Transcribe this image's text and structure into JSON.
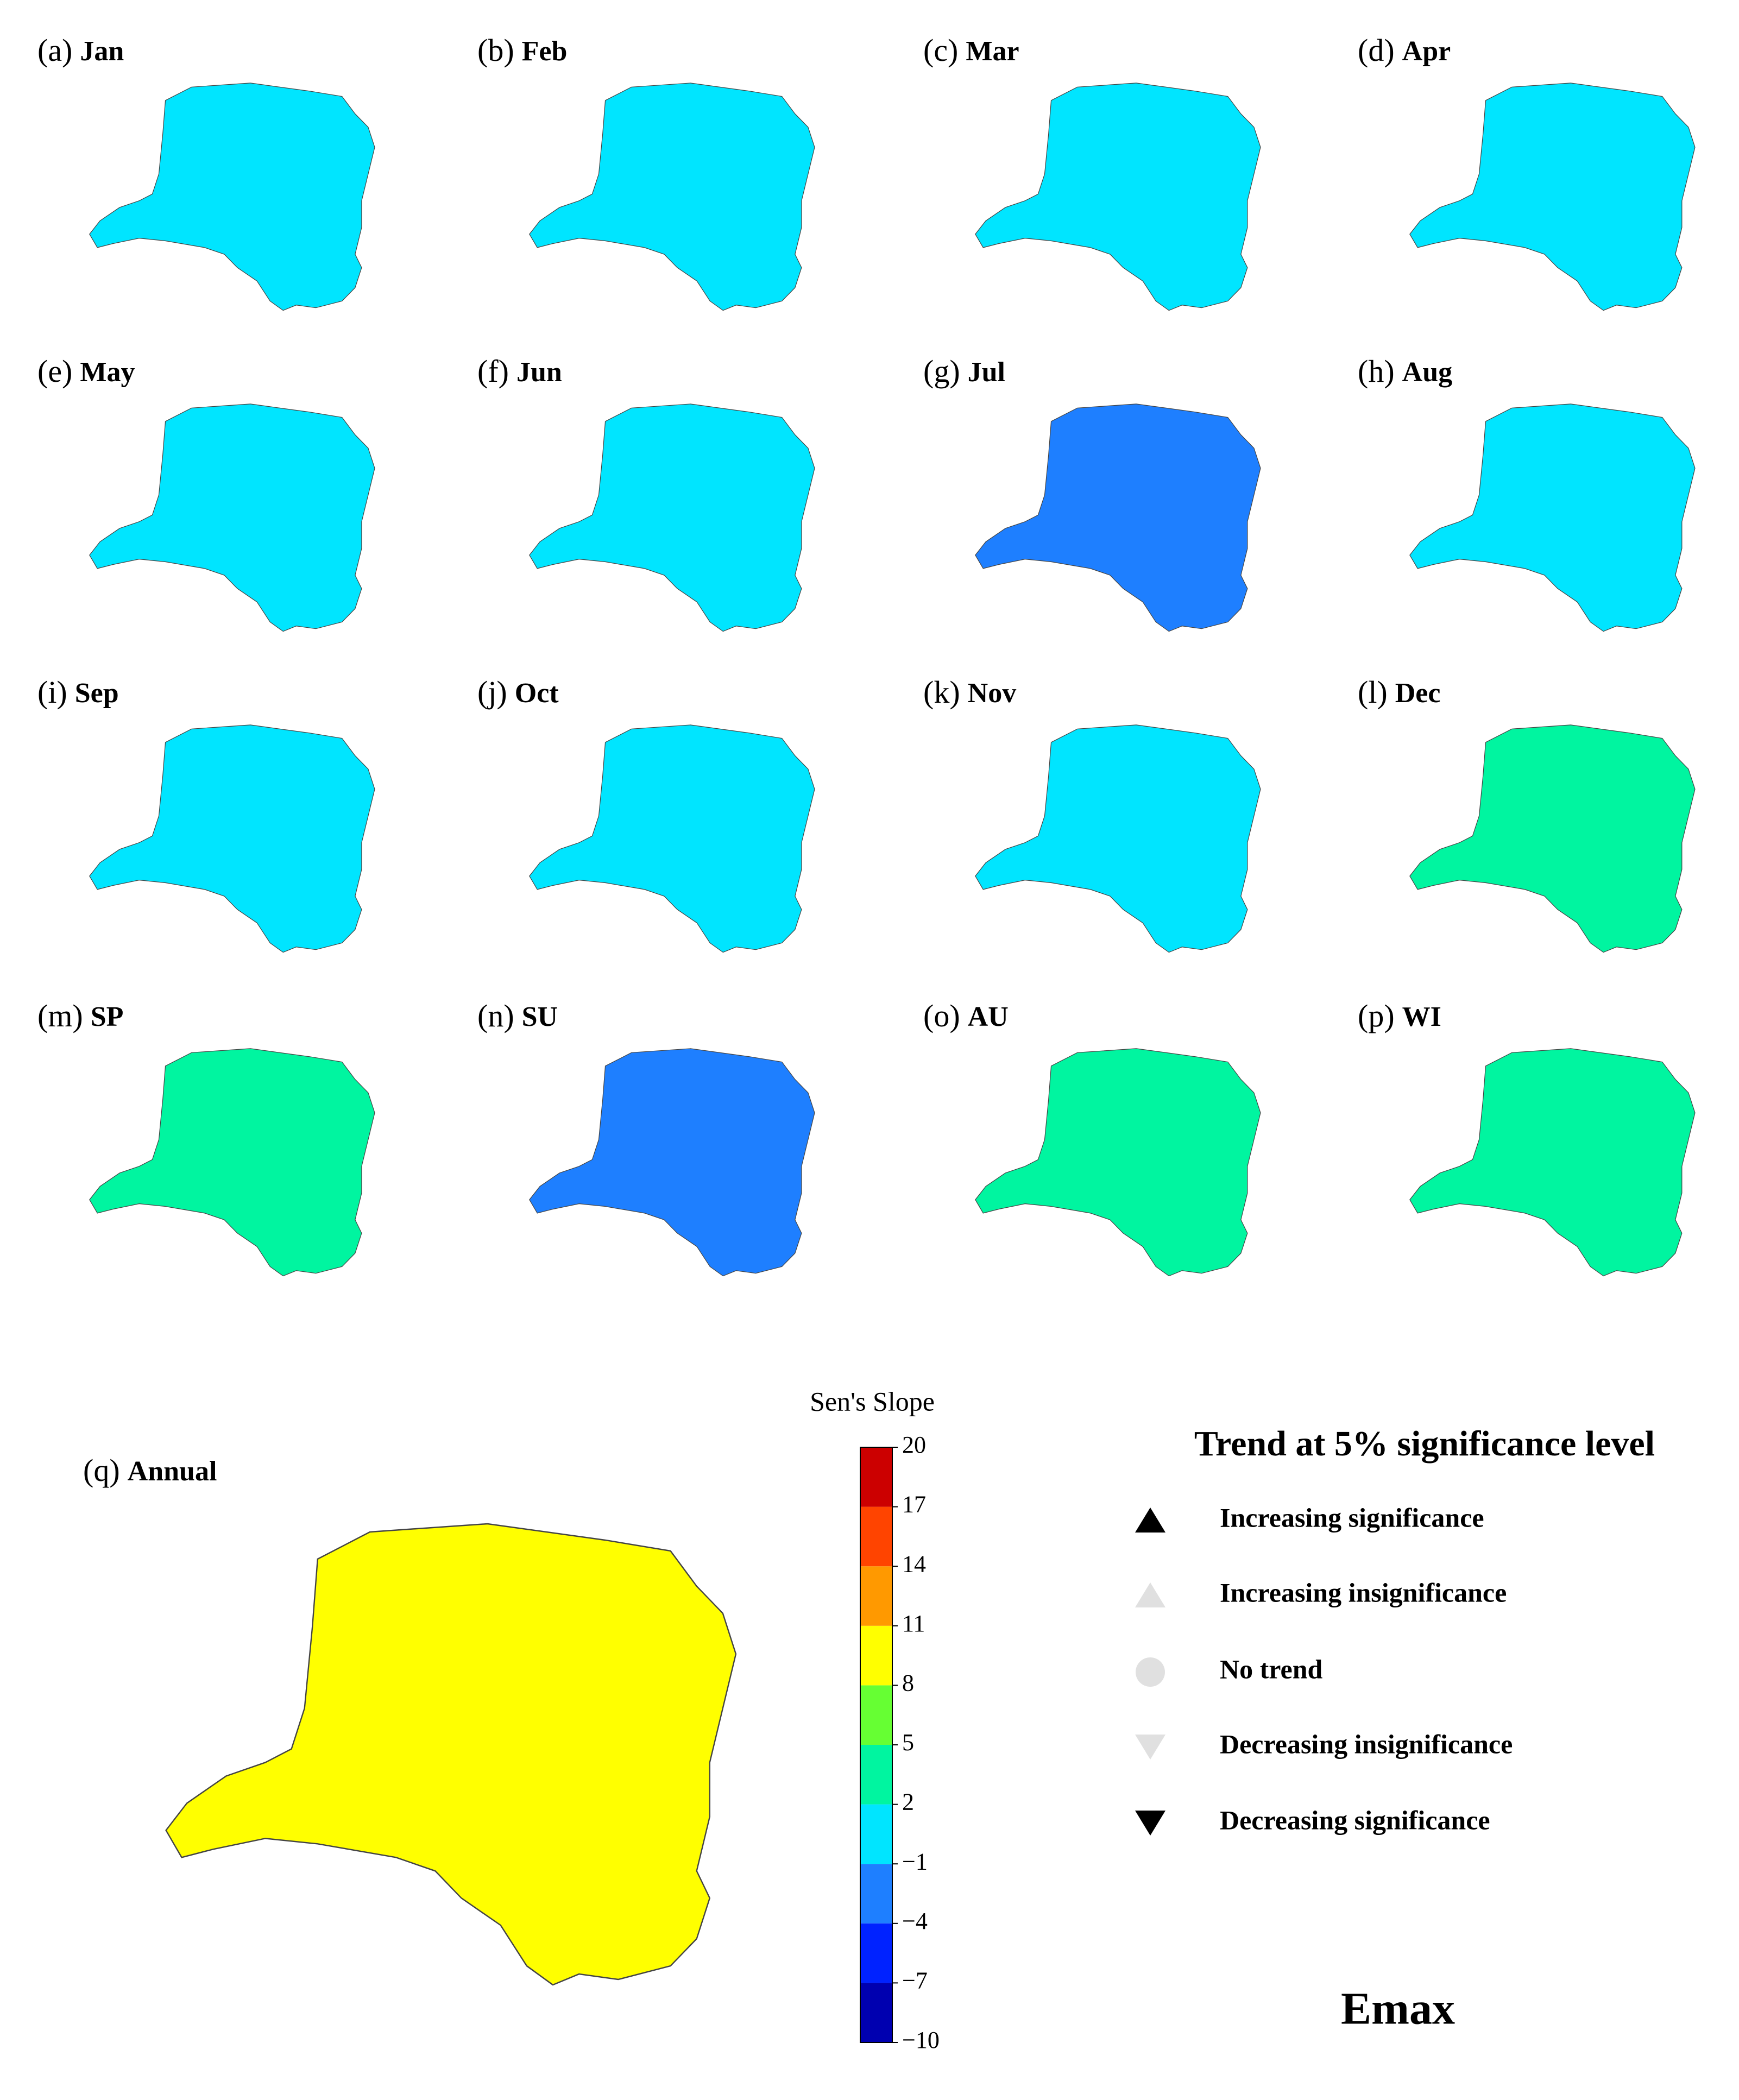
{
  "panels": [
    {
      "label": "(a)",
      "name": "Jan",
      "color": "#00e5ff"
    },
    {
      "label": "(b)",
      "name": "Feb",
      "color": "#00e5ff"
    },
    {
      "label": "(c)",
      "name": "Mar",
      "color": "#00e5ff"
    },
    {
      "label": "(d)",
      "name": "Apr",
      "color": "#00e5ff"
    },
    {
      "label": "(e)",
      "name": "May",
      "color": "#00e5ff"
    },
    {
      "label": "(f)",
      "name": "Jun",
      "color": "#00e5ff"
    },
    {
      "label": "(g)",
      "name": "Jul",
      "color": "#1e7fff"
    },
    {
      "label": "(h)",
      "name": "Aug",
      "color": "#00e5ff"
    },
    {
      "label": "(i)",
      "name": "Sep",
      "color": "#00e5ff"
    },
    {
      "label": "(j)",
      "name": "Oct",
      "color": "#00e5ff"
    },
    {
      "label": "(k)",
      "name": "Nov",
      "color": "#00e5ff"
    },
    {
      "label": "(l)",
      "name": "Dec",
      "color": "#00f5a0"
    },
    {
      "label": "(m)",
      "name": "SP",
      "color": "#00f5a0"
    },
    {
      "label": "(n)",
      "name": "SU",
      "color": "#1e7fff"
    },
    {
      "label": "(o)",
      "name": "AU",
      "color": "#00f5a0"
    },
    {
      "label": "(p)",
      "name": "WI",
      "color": "#00f5a0"
    }
  ],
  "annual": {
    "label": "(q)",
    "name": "Annual",
    "color": "#ffff00"
  },
  "colorbar": {
    "label": "Sen's Slope",
    "ticks": [
      {
        "value": -10,
        "label": "−10"
      },
      {
        "value": -7,
        "label": "−7"
      },
      {
        "value": -4,
        "label": "−4"
      },
      {
        "value": -1,
        "label": "−1"
      },
      2,
      5,
      8,
      11,
      14,
      17,
      20
    ],
    "colors": [
      "#0000b0",
      "#0022ff",
      "#1e7fff",
      "#00e5ff",
      "#00f5a0",
      "#66ff33",
      "#ffff00",
      "#ff9900",
      "#ff4400",
      "#cc0000"
    ]
  },
  "legend": {
    "title": "Trend at 5% significance level",
    "items": [
      "Increasing significance",
      "Increasing insignificance",
      "No trend",
      "Decreasing insignificance",
      "Decreasing significance"
    ]
  },
  "title": "Emax"
}
